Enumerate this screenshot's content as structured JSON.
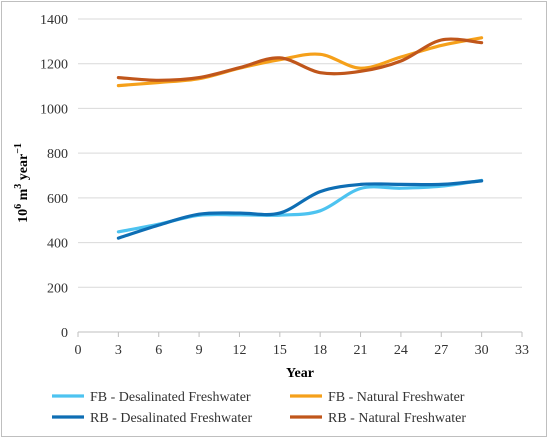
{
  "chart_data": {
    "type": "line",
    "title": "",
    "xlabel": "Year",
    "ylabel_base": "10",
    "ylabel_exp1": "6",
    "ylabel_mid": " m",
    "ylabel_exp2": "3",
    "ylabel_tail": " year",
    "ylabel_exp3": "−1",
    "xlim": [
      0,
      33
    ],
    "ylim": [
      0,
      1400
    ],
    "xticks": [
      "0",
      "3",
      "6",
      "9",
      "12",
      "15",
      "18",
      "21",
      "24",
      "27",
      "30",
      "33"
    ],
    "yticks": [
      "0",
      "200",
      "400",
      "600",
      "800",
      "1000",
      "1200",
      "1400"
    ],
    "grid": "horizontal",
    "legend_position": "bottom",
    "series": [
      {
        "name": "FB - Desalinated Freshwater",
        "color": "#4dc3f0",
        "x": [
          3,
          6,
          9,
          12,
          15,
          18,
          21,
          24,
          27,
          30
        ],
        "y": [
          448,
          482,
          522,
          524,
          523,
          542,
          642,
          643,
          652,
          678
        ]
      },
      {
        "name": "FB - Natural Freshwater",
        "color": "#f5a01a",
        "x": [
          3,
          6,
          9,
          12,
          15,
          18,
          21,
          24,
          27,
          30
        ],
        "y": [
          1102,
          1116,
          1133,
          1180,
          1218,
          1242,
          1180,
          1230,
          1282,
          1316
        ]
      },
      {
        "name": "RB - Desalinated Freshwater",
        "color": "#0e6eb4",
        "x": [
          3,
          6,
          9,
          12,
          15,
          18,
          21,
          24,
          27,
          30
        ],
        "y": [
          420,
          478,
          527,
          532,
          532,
          628,
          660,
          660,
          660,
          676
        ]
      },
      {
        "name": "RB - Natural Freshwater",
        "color": "#c0561b",
        "x": [
          3,
          6,
          9,
          12,
          15,
          18,
          21,
          24,
          27,
          30
        ],
        "y": [
          1138,
          1126,
          1138,
          1182,
          1226,
          1160,
          1166,
          1212,
          1306,
          1294
        ]
      }
    ]
  }
}
